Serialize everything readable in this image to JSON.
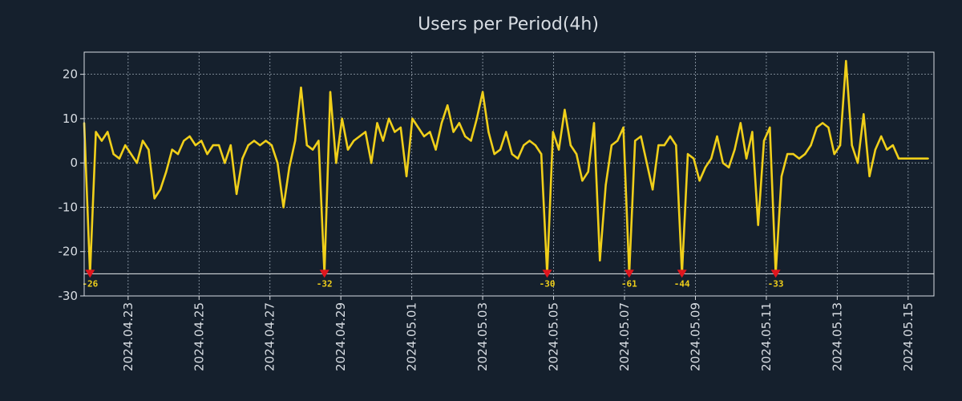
{
  "chart_data": {
    "type": "line",
    "title": "Users per Period(4h)",
    "xlabel": "",
    "ylabel": "",
    "ylim": [
      -30,
      25
    ],
    "xlim": [
      0,
      145
    ],
    "yticks": [
      20,
      10,
      0,
      -10,
      -20,
      -30
    ],
    "ytick_labels": [
      "20",
      "10",
      "0",
      "-10",
      "-20",
      "-30"
    ],
    "xticks": [
      {
        "pos": 7.5,
        "label": "2024.04.23"
      },
      {
        "pos": 19.6,
        "label": "2024.04.25"
      },
      {
        "pos": 31.7,
        "label": "2024.04.27"
      },
      {
        "pos": 43.8,
        "label": "2024.04.29"
      },
      {
        "pos": 55.9,
        "label": "2024.05.01"
      },
      {
        "pos": 68.0,
        "label": "2024.05.03"
      },
      {
        "pos": 80.1,
        "label": "2024.05.05"
      },
      {
        "pos": 92.2,
        "label": "2024.05.07"
      },
      {
        "pos": 104.3,
        "label": "2024.05.09"
      },
      {
        "pos": 116.4,
        "label": "2024.05.11"
      },
      {
        "pos": 128.5,
        "label": "2024.05.13"
      },
      {
        "pos": 140.6,
        "label": "2024.05.15"
      }
    ],
    "grid": true,
    "clip_floor": -25,
    "series": [
      {
        "name": "Users",
        "color": "#f0cf1a",
        "values": [
          9,
          -26,
          7,
          5,
          7,
          2,
          1,
          4,
          2,
          0,
          5,
          3,
          -8,
          -6,
          -2,
          3,
          2,
          5,
          6,
          4,
          5,
          2,
          4,
          4,
          0,
          4,
          -7,
          1,
          4,
          5,
          4,
          5,
          4,
          0,
          -10,
          -1,
          5,
          17,
          4,
          3,
          5,
          -32,
          16,
          0,
          10,
          3,
          5,
          6,
          7,
          0,
          9,
          5,
          10,
          7,
          8,
          -3,
          10,
          8,
          6,
          7,
          3,
          9,
          13,
          7,
          9,
          6,
          5,
          10,
          16,
          7,
          2,
          3,
          7,
          2,
          1,
          4,
          5,
          4,
          2,
          -30,
          7,
          3,
          12,
          4,
          2,
          -4,
          -2,
          9,
          -22,
          -5,
          4,
          5,
          8,
          -61,
          5,
          6,
          0,
          -6,
          4,
          4,
          6,
          4,
          -44,
          2,
          1,
          -4,
          -1,
          1,
          6,
          0,
          -1,
          3,
          9,
          1,
          7,
          -14,
          5,
          8,
          -33,
          -3,
          2,
          2,
          1,
          2,
          4,
          8,
          9,
          8,
          2,
          4,
          23,
          4,
          0,
          11,
          -3,
          3,
          6,
          3,
          4,
          1,
          1,
          1,
          1,
          1,
          1
        ]
      }
    ],
    "outliers": [
      {
        "index": 1,
        "value": -26,
        "label": "-26"
      },
      {
        "index": 41,
        "value": -32,
        "label": "-32"
      },
      {
        "index": 79,
        "value": -30,
        "label": "-30"
      },
      {
        "index": 93,
        "value": -61,
        "label": "-61"
      },
      {
        "index": 102,
        "value": -44,
        "label": "-44"
      },
      {
        "index": 118,
        "value": -33,
        "label": "-33"
      }
    ],
    "outlier_marker_color": "#e0161e",
    "outlier_label_color": "#f0cf1a"
  }
}
